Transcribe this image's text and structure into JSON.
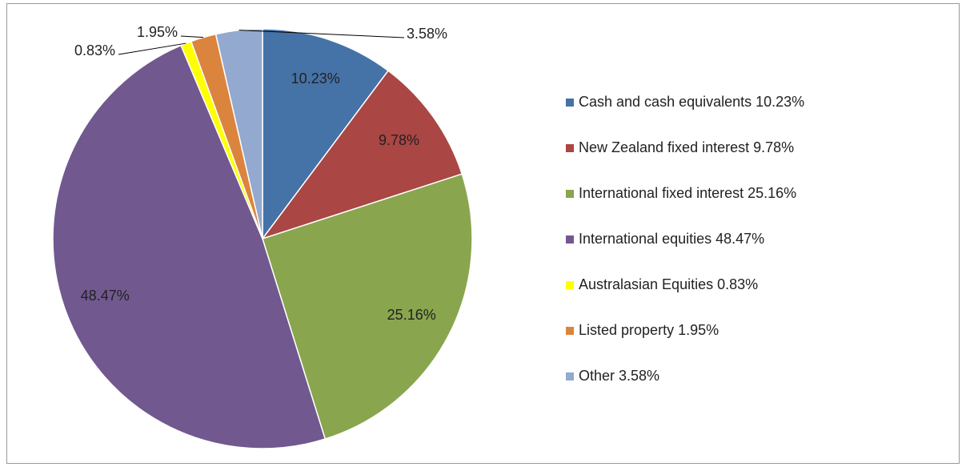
{
  "chart_data": {
    "type": "pie",
    "categories": [
      "Cash and cash equivalents 10.23%",
      "New Zealand fixed interest 9.78%",
      "International fixed interest 25.16%",
      "International equities 48.47%",
      "Australasian Equities  0.83%",
      "Listed property 1.95%",
      "Other 3.58%"
    ],
    "values": [
      10.23,
      9.78,
      25.16,
      48.47,
      0.83,
      1.95,
      3.58
    ],
    "value_labels": [
      "10.23%",
      "9.78%",
      "25.16%",
      "48.47%",
      "0.83%",
      "1.95%",
      "3.58%"
    ],
    "colors": [
      "#4572a7",
      "#aa4643",
      "#89a54e",
      "#71588f",
      "#ffff00",
      "#db843d",
      "#93a9cf"
    ],
    "legend": "right"
  }
}
